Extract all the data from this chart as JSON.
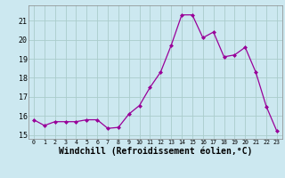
{
  "x": [
    0,
    1,
    2,
    3,
    4,
    5,
    6,
    7,
    8,
    9,
    10,
    11,
    12,
    13,
    14,
    15,
    16,
    17,
    18,
    19,
    20,
    21,
    22,
    23
  ],
  "y": [
    15.8,
    15.5,
    15.7,
    15.7,
    15.7,
    15.8,
    15.8,
    15.35,
    15.4,
    16.1,
    16.55,
    17.5,
    18.3,
    19.7,
    21.3,
    21.3,
    20.1,
    20.4,
    19.1,
    19.2,
    19.6,
    18.3,
    16.5,
    15.2
  ],
  "line_color": "#990099",
  "marker": "D",
  "marker_size": 2,
  "bg_color": "#cce8f0",
  "grid_color": "#aacccc",
  "xlabel": "Windchill (Refroidissement éolien,°C)",
  "xlabel_fontsize": 7,
  "yticks": [
    15,
    16,
    17,
    18,
    19,
    20,
    21
  ],
  "xticks": [
    0,
    1,
    2,
    3,
    4,
    5,
    6,
    7,
    8,
    9,
    10,
    11,
    12,
    13,
    14,
    15,
    16,
    17,
    18,
    19,
    20,
    21,
    22,
    23
  ],
  "ylim": [
    14.8,
    21.8
  ],
  "xlim": [
    -0.5,
    23.5
  ]
}
